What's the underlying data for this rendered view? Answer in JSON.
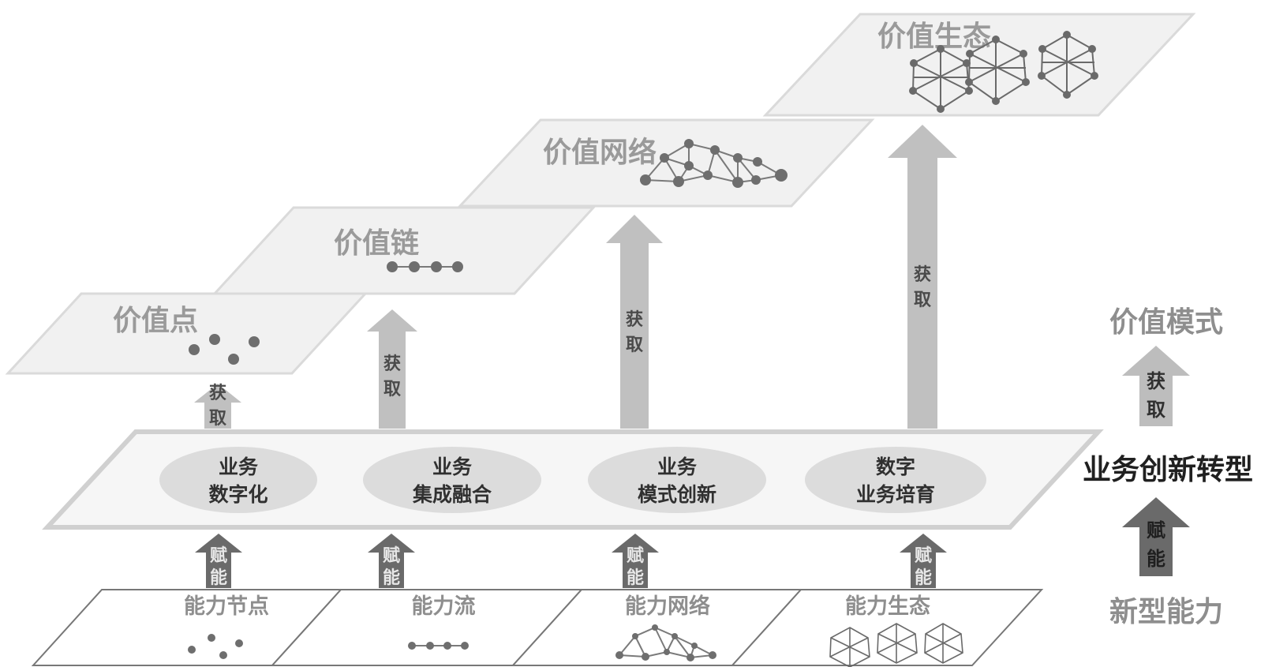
{
  "value_layers": [
    {
      "label": "价值点"
    },
    {
      "label": "价值链"
    },
    {
      "label": "价值网络"
    },
    {
      "label": "价值生态"
    }
  ],
  "business_items": [
    {
      "line1": "业务",
      "line2": "数字化"
    },
    {
      "line1": "业务",
      "line2": "集成融合"
    },
    {
      "line1": "业务",
      "line2": "模式创新"
    },
    {
      "line1": "数字",
      "line2": "业务培育"
    }
  ],
  "capability_items": [
    {
      "label": "能力节点"
    },
    {
      "label": "能力流"
    },
    {
      "label": "能力网络"
    },
    {
      "label": "能力生态"
    }
  ],
  "arrows": {
    "acquire_char1": "获",
    "acquire_char2": "取",
    "empower_char1": "赋",
    "empower_char2": "能"
  },
  "side": {
    "value_mode": "价值模式",
    "acquire_char1": "获",
    "acquire_char2": "取",
    "business_transform": "业务创新转型",
    "empower_char1": "赋",
    "empower_char2": "能",
    "new_capability": "新型能力"
  },
  "colors": {
    "light_arrow": "#bdbdbd",
    "dark_arrow": "#6a6a6a",
    "plane_fill": "#f2f2f2",
    "plane_stroke": "#d6d6d6",
    "ellipse_fill": "#dcdcdc"
  }
}
